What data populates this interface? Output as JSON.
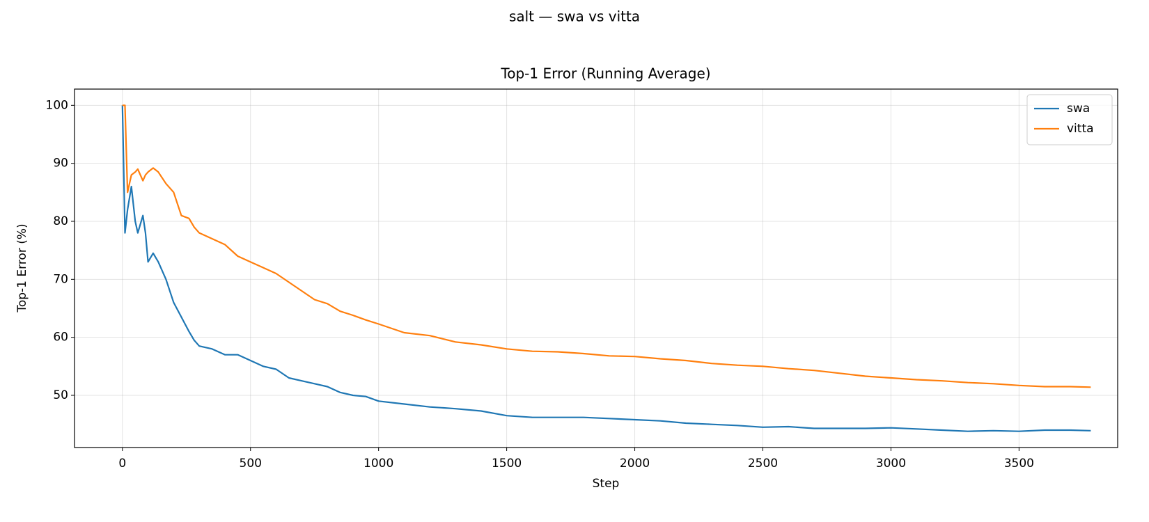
{
  "chart_data": {
    "type": "line",
    "suptitle": "salt — swa vs vitta",
    "title": "Top-1 Error (Running Average)",
    "x_label": "Step",
    "y_label": "Top-1 Error (%)",
    "x": [
      0,
      10,
      20,
      35,
      50,
      60,
      80,
      90,
      100,
      120,
      140,
      170,
      200,
      230,
      260,
      280,
      300,
      350,
      400,
      450,
      500,
      550,
      600,
      650,
      700,
      750,
      800,
      850,
      900,
      950,
      1000,
      1100,
      1200,
      1300,
      1400,
      1500,
      1600,
      1700,
      1800,
      1900,
      2000,
      2100,
      2200,
      2300,
      2400,
      2500,
      2600,
      2700,
      2800,
      2900,
      3000,
      3100,
      3200,
      3300,
      3400,
      3500,
      3600,
      3700,
      3780
    ],
    "series": [
      {
        "name": "swa",
        "color": "#1f77b4",
        "values": [
          100,
          78,
          82,
          86,
          80,
          78,
          81,
          78,
          73,
          74.5,
          73,
          70,
          66,
          63.5,
          61,
          59.5,
          58.5,
          58,
          57,
          57,
          56,
          55,
          54.5,
          53,
          52.5,
          52,
          51.5,
          50.5,
          50,
          49.8,
          49,
          48.5,
          48,
          47.7,
          47.3,
          46.5,
          46.2,
          46.2,
          46.2,
          46,
          45.8,
          45.6,
          45.2,
          45,
          44.8,
          44.5,
          44.6,
          44.3,
          44.3,
          44.3,
          44.4,
          44.2,
          44,
          43.8,
          43.9,
          43.8,
          44,
          44,
          43.9
        ]
      },
      {
        "name": "vitta",
        "color": "#ff7f0e",
        "values": [
          100,
          100,
          85,
          88,
          88.5,
          89,
          87,
          88,
          88.5,
          89.2,
          88.5,
          86.5,
          85,
          81,
          80.5,
          79,
          78,
          77,
          76,
          74,
          73,
          72,
          71,
          69.5,
          68,
          66.5,
          65.8,
          64.5,
          63.8,
          63,
          62.3,
          60.8,
          60.3,
          59.2,
          58.7,
          58,
          57.6,
          57.5,
          57.2,
          56.8,
          56.7,
          56.3,
          56,
          55.5,
          55.2,
          55,
          54.6,
          54.3,
          53.8,
          53.3,
          53,
          52.7,
          52.5,
          52.2,
          52,
          51.7,
          51.5,
          51.5,
          51.4
        ]
      }
    ],
    "xlim": [
      -187,
      3885
    ],
    "ylim": [
      41,
      102.8
    ],
    "xticks": [
      0,
      500,
      1000,
      1500,
      2000,
      2500,
      3000,
      3500
    ],
    "yticks": [
      50,
      60,
      70,
      80,
      90,
      100
    ],
    "grid": true,
    "legend": "upper right"
  }
}
